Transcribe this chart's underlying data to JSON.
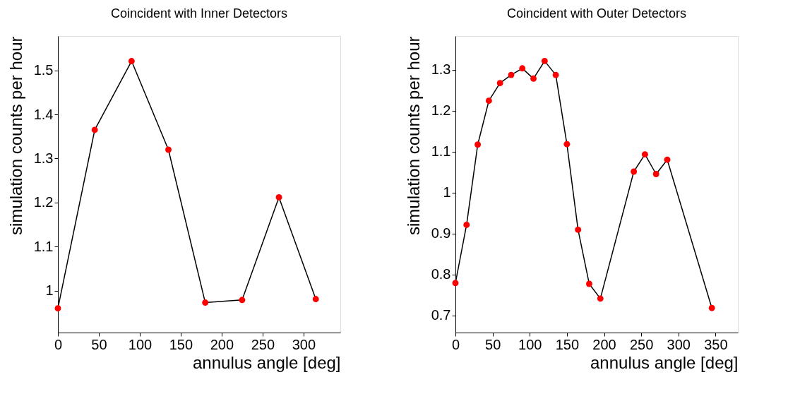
{
  "chart_data": [
    {
      "type": "line",
      "title": "Coincident with Inner Detectors",
      "xlabel": "annulus angle [deg]",
      "ylabel": "simulation counts per hour",
      "marker": "circle",
      "line_style": "solid",
      "x": [
        0,
        45,
        90,
        135,
        180,
        225,
        270,
        315
      ],
      "series": [
        {
          "color": "#ff0000",
          "values": [
            0.96,
            1.365,
            1.521,
            1.32,
            0.973,
            0.979,
            1.212,
            0.981
          ]
        }
      ],
      "xlim": [
        0,
        345
      ],
      "xticks": [
        0,
        50,
        100,
        150,
        200,
        250,
        300
      ],
      "ylim": [
        0.905,
        1.578
      ],
      "yticks": [
        1,
        1.1,
        1.2,
        1.3,
        1.4,
        1.5
      ]
    },
    {
      "type": "line",
      "title": "Coincident with Outer Detectors",
      "xlabel": "annulus angle [deg]",
      "ylabel": "simulation counts per hour",
      "marker": "circle",
      "line_style": "solid",
      "x": [
        0,
        15,
        30,
        45,
        60,
        75,
        90,
        105,
        120,
        135,
        150,
        165,
        180,
        195,
        240,
        255,
        270,
        285,
        345
      ],
      "series": [
        {
          "color": "#ff0000",
          "values": [
            0.779,
            0.921,
            1.117,
            1.224,
            1.267,
            1.287,
            1.303,
            1.278,
            1.321,
            1.287,
            1.118,
            0.909,
            0.777,
            0.741,
            1.051,
            1.093,
            1.045,
            1.08,
            0.718
          ]
        }
      ],
      "xlim": [
        0,
        380
      ],
      "xticks": [
        0,
        50,
        100,
        150,
        200,
        250,
        300,
        350
      ],
      "ylim": [
        0.658,
        1.382
      ],
      "yticks": [
        0.7,
        0.8,
        0.9,
        1,
        1.1,
        1.2,
        1.3
      ]
    }
  ]
}
